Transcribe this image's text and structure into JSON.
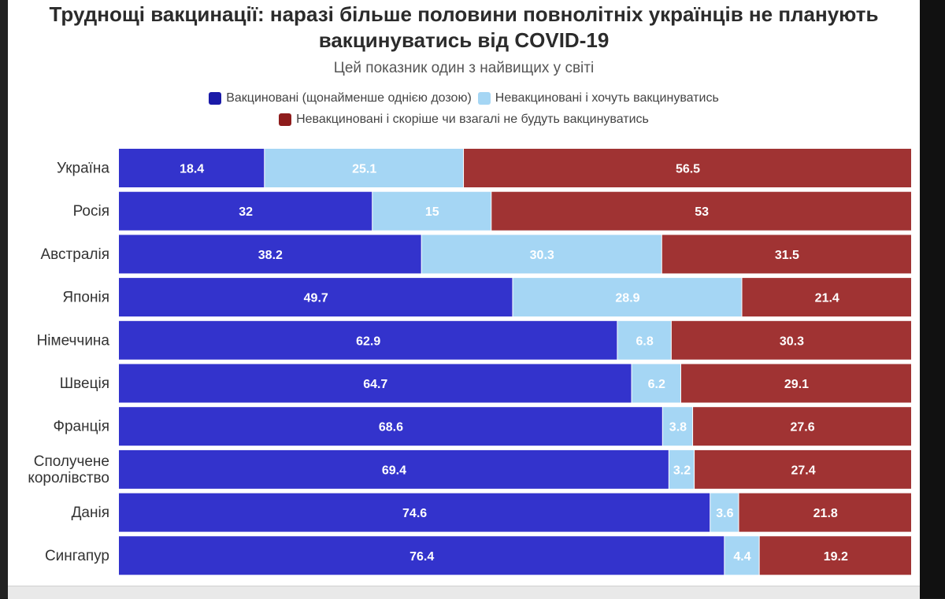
{
  "title_line1": "Труднощі вакцинації: наразі більше половини повнолітніх українців не планують",
  "title_line2": "вакцинуватись від COVID-19",
  "subtitle": "Цей показник один з найвищих у світі",
  "colors": {
    "vaccinated": "#3333cc",
    "want": "#a5d6f4",
    "not": "#a03333"
  },
  "chart_data": {
    "type": "bar",
    "orientation": "horizontal",
    "stacked": true,
    "title": "Труднощі вакцинації: наразі більше половини повнолітніх українців не планують вакцинуватись від COVID-19",
    "subtitle": "Цей показник один з найвищих у світі",
    "legend_position": "top",
    "xlim": [
      0,
      100
    ],
    "categories": [
      "Україна",
      "Росія",
      "Австралія",
      "Японія",
      "Німеччина",
      "Швеція",
      "Франція",
      "Сполучене королівство",
      "Данія",
      "Сингапур"
    ],
    "category_lines": [
      [
        "Україна"
      ],
      [
        "Росія"
      ],
      [
        "Австралія"
      ],
      [
        "Японія"
      ],
      [
        "Німеччина"
      ],
      [
        "Швеція"
      ],
      [
        "Франція"
      ],
      [
        "Сполучене",
        "королівство"
      ],
      [
        "Данія"
      ],
      [
        "Сингапур"
      ]
    ],
    "series": [
      {
        "name": "Вакциновані (щонайменше однією дозою)",
        "color": "#3333cc",
        "values": [
          18.4,
          32,
          38.2,
          49.7,
          62.9,
          64.7,
          68.6,
          69.4,
          74.6,
          76.4
        ]
      },
      {
        "name": "Невакциновані і хочуть вакцинуватись",
        "color": "#a5d6f4",
        "values": [
          25.1,
          15,
          30.3,
          28.9,
          6.8,
          6.2,
          3.8,
          3.2,
          3.6,
          4.4
        ]
      },
      {
        "name": "Невакциновані і скоріше чи взагалі не будуть вакцинуватись",
        "color": "#a03333",
        "values": [
          56.5,
          53,
          31.5,
          21.4,
          30.3,
          29.1,
          27.6,
          27.4,
          21.8,
          19.2
        ]
      }
    ]
  }
}
